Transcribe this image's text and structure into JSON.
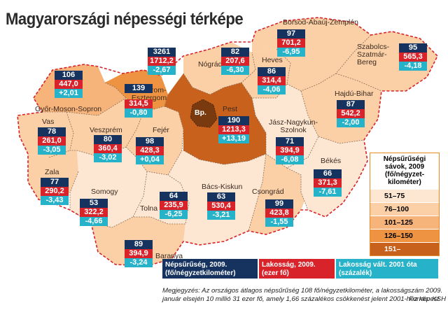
{
  "title": "Magyarországi népességi térképe",
  "colors": {
    "scale": [
      "#fde7d2",
      "#fbd0a6",
      "#f6b37a",
      "#ee9342",
      "#c8611c"
    ],
    "density": "#16335f",
    "population": "#d8232a",
    "change": "#26b3c9",
    "border": "#d8232a"
  },
  "counties": [
    {
      "id": "gyor",
      "name": "Győr-Moson-Sopron",
      "density": "106",
      "population": "447,0",
      "change": "+2,01"
    },
    {
      "id": "komarom",
      "name": "Komárom-Esztergom",
      "density": "139",
      "population": "314,5",
      "change": "-0,80"
    },
    {
      "id": "budapest",
      "name": "Bp.",
      "density": "3261",
      "population": "1712,2",
      "change": "-2,67"
    },
    {
      "id": "nograd",
      "name": "Nógrád",
      "density": "82",
      "population": "207,6",
      "change": "-6,30"
    },
    {
      "id": "heves",
      "name": "Heves",
      "density": "86",
      "population": "314,4",
      "change": "-4,06"
    },
    {
      "id": "borsod",
      "name": "Borsod-Abaúj-Zemplén",
      "density": "97",
      "population": "701,2",
      "change": "-6,95"
    },
    {
      "id": "szabolcs",
      "name": "Szabolcs-Szatmár-Bereg",
      "density": "95",
      "population": "565,3",
      "change": "-4,18"
    },
    {
      "id": "hajdu",
      "name": "Hajdú-Bihar",
      "density": "87",
      "population": "542,2",
      "change": "-2,00"
    },
    {
      "id": "vas",
      "name": "Vas",
      "density": "78",
      "population": "261,0",
      "change": "-3,05"
    },
    {
      "id": "veszprem",
      "name": "Veszprém",
      "density": "80",
      "population": "360,4",
      "change": "-3,02"
    },
    {
      "id": "fejer",
      "name": "Fejér",
      "density": "98",
      "population": "428,3",
      "change": "+0,04"
    },
    {
      "id": "pest",
      "name": "Pest",
      "density": "190",
      "population": "1213,3",
      "change": "+13,19"
    },
    {
      "id": "jasz",
      "name": "Jász-Nagykun-Szolnok",
      "density": "71",
      "population": "394,9",
      "change": "-6,08"
    },
    {
      "id": "bekes",
      "name": "Békés",
      "density": "66",
      "population": "371,3",
      "change": "-7,61"
    },
    {
      "id": "zala",
      "name": "Zala",
      "density": "77",
      "population": "290,2",
      "change": "-3,43"
    },
    {
      "id": "somogy",
      "name": "Somogy",
      "density": "53",
      "population": "322,2",
      "change": "-4,66"
    },
    {
      "id": "tolna",
      "name": "Tolna",
      "density": "64",
      "population": "235,9",
      "change": "-6,25"
    },
    {
      "id": "bacs",
      "name": "Bács-Kiskun",
      "density": "63",
      "population": "530,4",
      "change": "-3,21"
    },
    {
      "id": "csongrad",
      "name": "Csongrád",
      "density": "99",
      "population": "423,8",
      "change": "-1,55"
    },
    {
      "id": "baranya",
      "name": "Baranya",
      "density": "89",
      "population": "394,9",
      "change": "-3,24"
    }
  ],
  "legend": {
    "scale_title": "Népsűrűségi sávok, 2009 (fő/négyzet-kilométer)",
    "scale_items": [
      "51–75",
      "76–100",
      "101–125",
      "126–150",
      "151–"
    ],
    "density_label": "Népsűrűség, 2009. (fő/négyzetkilométer)",
    "population_label": "Lakosság, 2009. (ezer fő)",
    "change_label": "Lakosság vált. 2001 óta (százalék)"
  },
  "note": {
    "text": "Megjegyzés: Az országos átlagos népsűrűség 108 fő/négyzetkilométer, a lakosságszám 2009. január elsején 10 millió 31 ezer fő, amely 1,66 százalékos csökkenést jelent 2001-hez képest",
    "source": "Forrás: KSH"
  }
}
